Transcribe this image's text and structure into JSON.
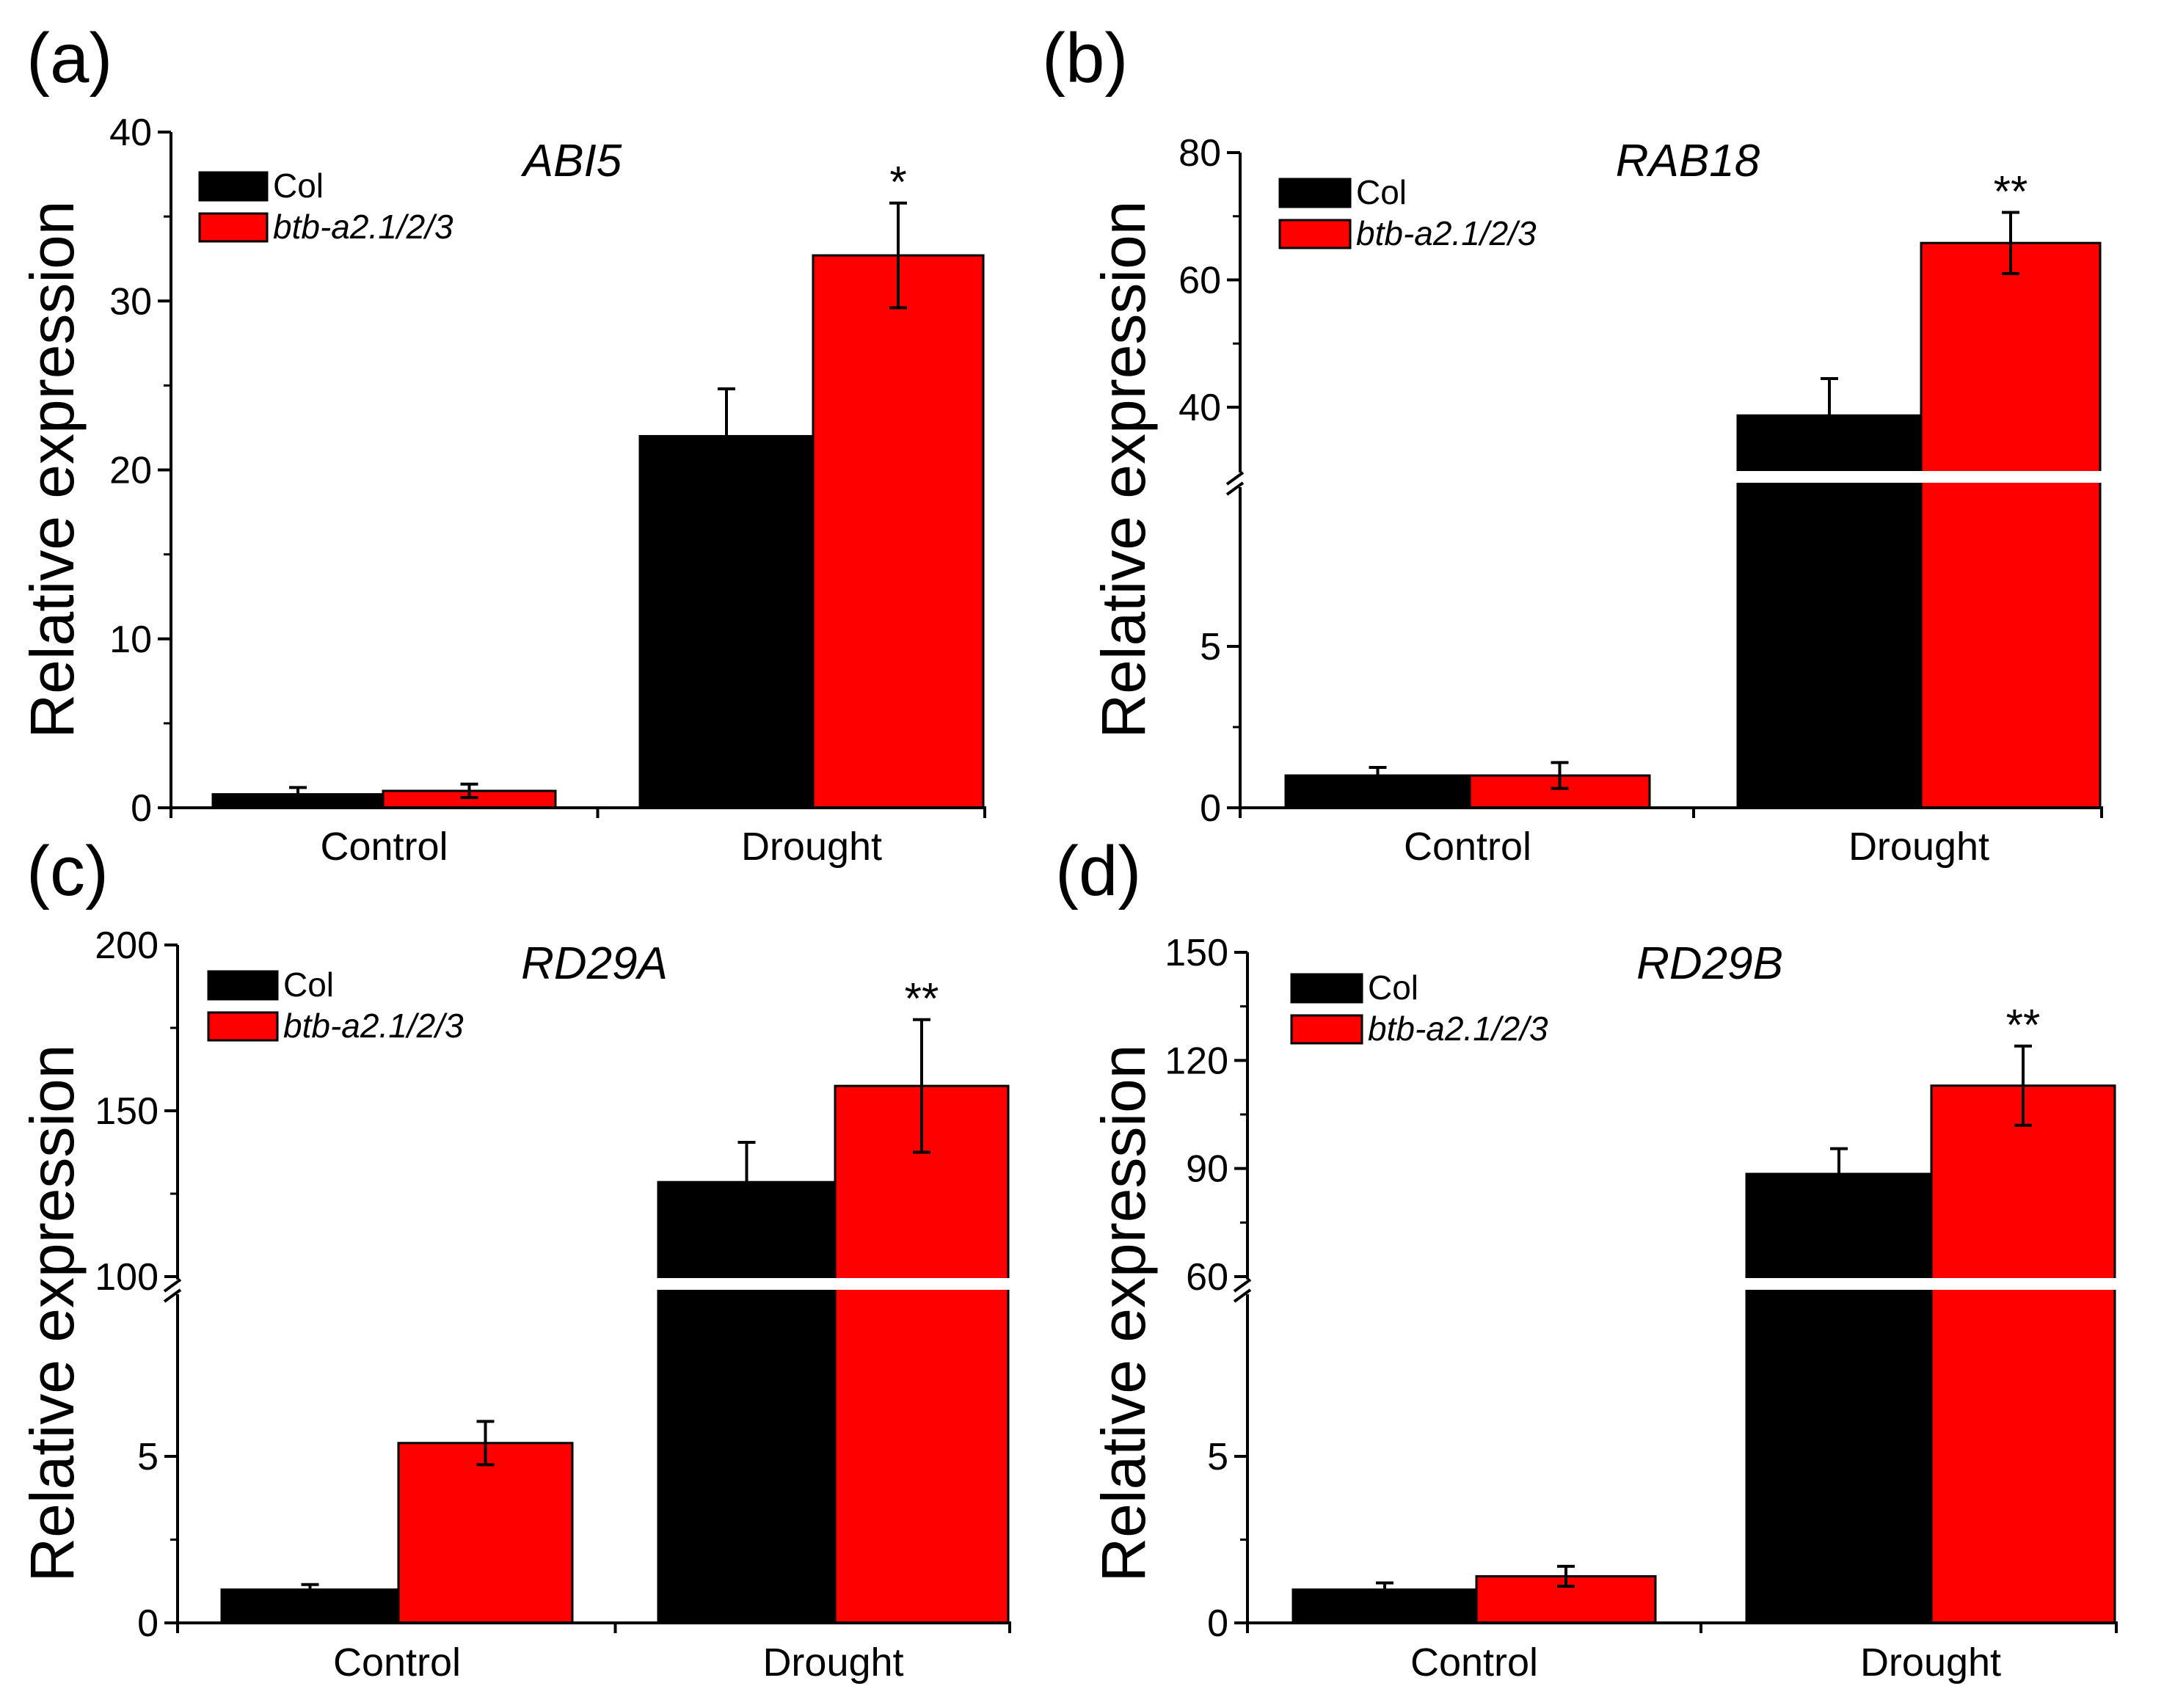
{
  "figure": {
    "colors": {
      "Col": "#000000",
      "btb-a2.1/2/3": "#ff0000"
    }
  },
  "chart_data": [
    {
      "panel": "(a)",
      "type": "bar",
      "title": "ABI5",
      "ylabel": "Relative expression",
      "categories": [
        "Control",
        "Drought"
      ],
      "ylim": [
        0,
        40
      ],
      "ticks": [
        0,
        10,
        20,
        30,
        40
      ],
      "axis_break": null,
      "series": [
        {
          "name": "Col",
          "values": [
            0.8,
            22
          ],
          "errors": [
            0.4,
            2.8
          ]
        },
        {
          "name": "btb-a2.1/2/3",
          "values": [
            1.0,
            32.7
          ],
          "errors": [
            0.4,
            3.1
          ]
        }
      ],
      "significance": [
        "",
        "*"
      ]
    },
    {
      "panel": "(b)",
      "type": "bar",
      "title": "RAB18",
      "ylabel": "Relative expression",
      "categories": [
        "Control",
        "Drought"
      ],
      "ylim": [
        0,
        80
      ],
      "ticks": [
        0,
        5,
        40,
        60,
        80
      ],
      "axis_break": [
        10,
        30
      ],
      "series": [
        {
          "name": "Col",
          "values": [
            1.0,
            38.7
          ],
          "errors": [
            0.25,
            5.8
          ]
        },
        {
          "name": "btb-a2.1/2/3",
          "values": [
            1.0,
            65.8
          ],
          "errors": [
            0.4,
            4.8
          ]
        }
      ],
      "significance": [
        "",
        "**"
      ]
    },
    {
      "panel": "(c)",
      "type": "bar",
      "title": "RD29A",
      "ylabel": "Relative expression",
      "categories": [
        "Control",
        "Drought"
      ],
      "ylim": [
        0,
        200
      ],
      "ticks": [
        0,
        5,
        100,
        150,
        200
      ],
      "axis_break": [
        10,
        100
      ],
      "series": [
        {
          "name": "Col",
          "values": [
            1.0,
            128.5
          ],
          "errors": [
            0.15,
            12.0
          ]
        },
        {
          "name": "btb-a2.1/2/3",
          "values": [
            5.4,
            157.5
          ],
          "errors": [
            0.65,
            20.0
          ]
        }
      ],
      "significance": [
        "",
        "**"
      ]
    },
    {
      "panel": "(d)",
      "type": "bar",
      "title": "RD29B",
      "ylabel": "Relative expression",
      "categories": [
        "Control",
        "Drought"
      ],
      "ylim": [
        0,
        150
      ],
      "ticks": [
        0,
        5,
        60,
        90,
        120,
        150
      ],
      "axis_break": [
        10,
        60
      ],
      "series": [
        {
          "name": "Col",
          "values": [
            1.0,
            88.5
          ],
          "errors": [
            0.2,
            7.0
          ]
        },
        {
          "name": "btb-a2.1/2/3",
          "values": [
            1.4,
            113
          ],
          "errors": [
            0.3,
            11.0
          ]
        }
      ],
      "significance": [
        "",
        "**"
      ]
    }
  ]
}
